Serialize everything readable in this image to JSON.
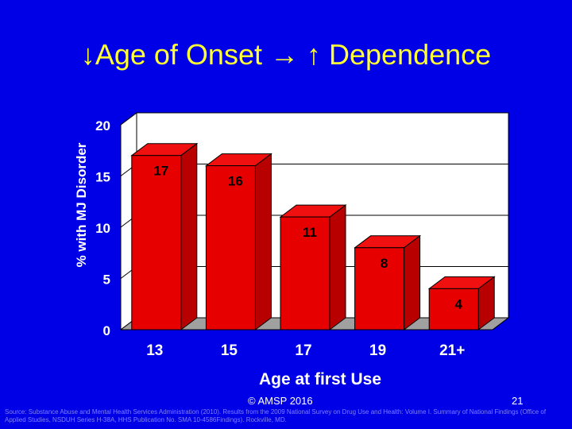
{
  "title": "↓Age of Onset → ↑ Dependence",
  "footer": {
    "copyright": "© AMSP 2016",
    "page_number": "21",
    "source": "Source: Substance Abuse and Mental Health Services Administration (2010). Results from the 2009 National Survey on Drug Use and Health: Volume I. Summary of National Findings (Office of Applied Studies, NSDUH Series H-38A, HHS Publication No. SMA 10-4586Findings). Rockville, MD."
  },
  "colors": {
    "background": "#0000e6",
    "title": "#ffff33",
    "bar_front": "#e60000",
    "bar_top": "#f01010",
    "bar_side": "#b80000",
    "floor": "#a0a0a0",
    "wall": "#ffffff"
  },
  "chart_data": {
    "type": "bar",
    "categories": [
      "13",
      "15",
      "17",
      "19",
      "21+"
    ],
    "values": [
      17,
      16,
      11,
      8,
      4
    ],
    "data_labels": [
      "17",
      "16",
      "11",
      "8",
      "4"
    ],
    "title": "",
    "xlabel": "Age at first Use",
    "ylabel": "% with MJ Disorder",
    "ylim": [
      0,
      20
    ],
    "yticks": [
      "0",
      "5",
      "10",
      "15",
      "20"
    ],
    "grid": true,
    "style": "3d"
  }
}
